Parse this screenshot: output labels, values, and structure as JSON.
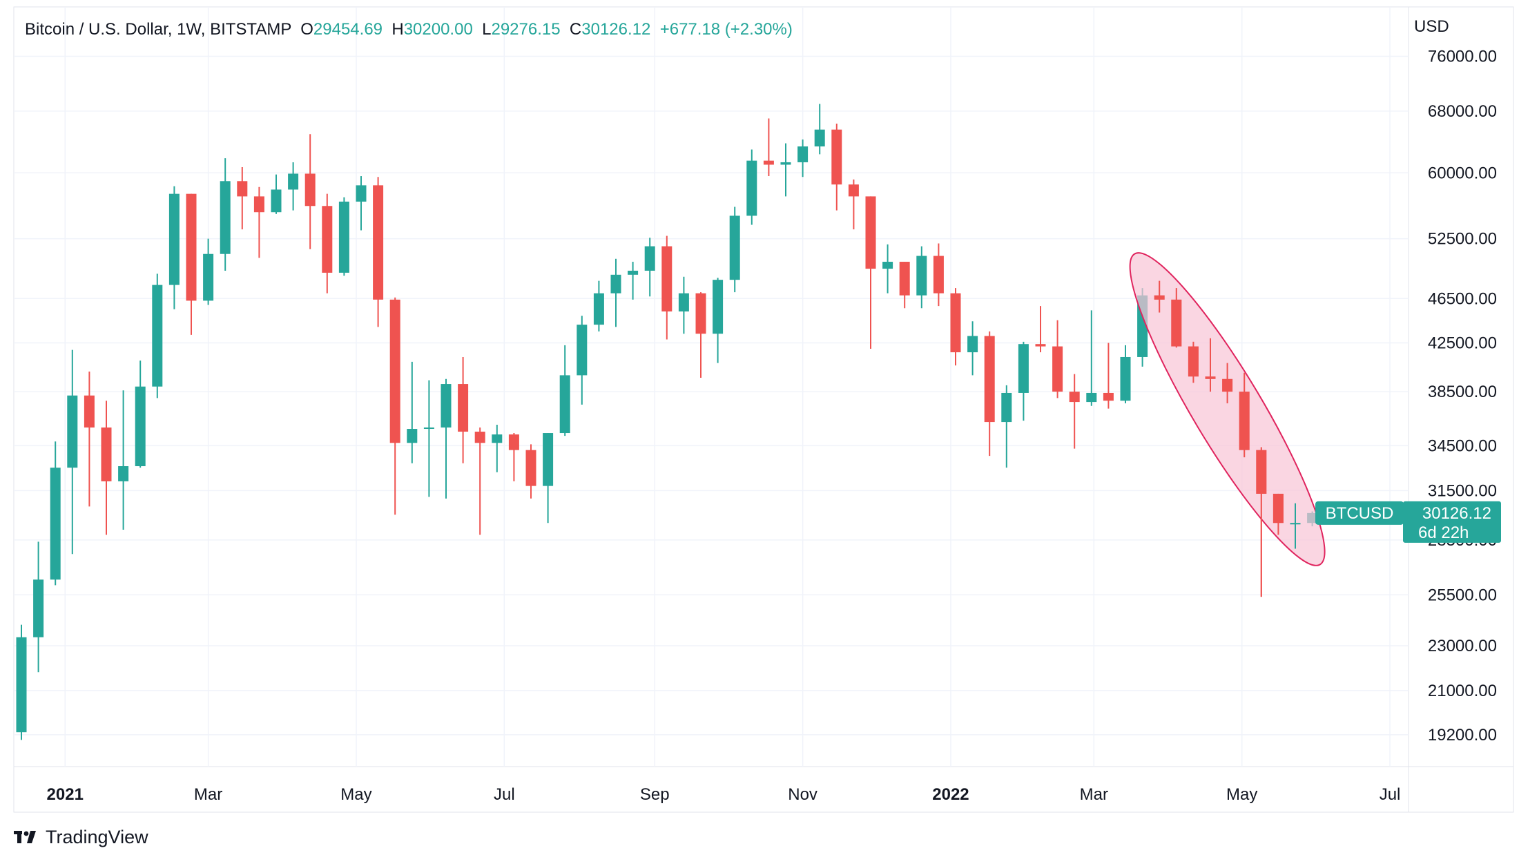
{
  "header": {
    "symbol_title": "Bitcoin / U.S. Dollar, 1W, BITSTAMP",
    "open_label": "O",
    "open_value": "29454.69",
    "high_label": "H",
    "high_value": "30200.00",
    "low_label": "L",
    "low_value": "29276.15",
    "close_label": "C",
    "close_value": "30126.12",
    "change": "+677.18 (+2.30%)"
  },
  "currency_label": "USD",
  "price_badge": {
    "symbol": "BTCUSD",
    "price": "30126.12",
    "countdown": "6d 22h"
  },
  "branding": {
    "name": "TradingView",
    "logo_icon": "tradingview-logo-icon"
  },
  "colors": {
    "up": "#26a69a",
    "down": "#ef5350",
    "highlight_fill": "#f8c5d6",
    "highlight_stroke": "#e0245e",
    "grid": "#f0f3fa",
    "text": "#131722"
  },
  "chart_data": {
    "type": "candlestick",
    "scale": "log",
    "timeframe": "1W",
    "ylim": [
      18000,
      84000
    ],
    "y_ticks": [
      "76000.00",
      "68000.00",
      "60000.00",
      "52500.00",
      "46500.00",
      "42500.00",
      "38500.00",
      "34500.00",
      "31500.00",
      "28500.00",
      "25500.00",
      "23000.00",
      "21000.00",
      "19200.00"
    ],
    "x_ticks": [
      "2021",
      "Mar",
      "May",
      "Jul",
      "Sep",
      "Nov",
      "2022",
      "Mar",
      "May",
      "Jul"
    ],
    "bold_x_ticks": [
      "2021",
      "2022"
    ],
    "candles": [
      [
        "2020-12-14",
        19300,
        24000,
        19000,
        23400
      ],
      [
        "2020-12-21",
        23400,
        28400,
        21800,
        26300
      ],
      [
        "2020-12-28",
        26300,
        34800,
        26000,
        33000
      ],
      [
        "2021-01-04",
        33000,
        41900,
        27700,
        38200
      ],
      [
        "2021-01-11",
        38200,
        40100,
        30500,
        35800
      ],
      [
        "2021-01-18",
        35800,
        37800,
        28800,
        32100
      ],
      [
        "2021-01-25",
        32100,
        38600,
        29100,
        33100
      ],
      [
        "2021-02-01",
        33100,
        41000,
        33000,
        38900
      ],
      [
        "2021-02-08",
        38900,
        48900,
        38000,
        47800
      ],
      [
        "2021-02-15",
        47800,
        58400,
        45500,
        57500
      ],
      [
        "2021-02-22",
        57500,
        57500,
        43200,
        46300
      ],
      [
        "2021-03-01",
        46300,
        52500,
        45900,
        50900
      ],
      [
        "2021-03-08",
        50900,
        61800,
        49200,
        59000
      ],
      [
        "2021-03-15",
        59000,
        60700,
        53500,
        57200
      ],
      [
        "2021-03-22",
        57200,
        58300,
        50500,
        55400
      ],
      [
        "2021-03-29",
        55400,
        59800,
        55200,
        58000
      ],
      [
        "2021-04-05",
        58000,
        61300,
        55600,
        59900
      ],
      [
        "2021-04-12",
        59900,
        64900,
        51400,
        56100
      ],
      [
        "2021-04-19",
        56100,
        57500,
        47000,
        49000
      ],
      [
        "2021-04-26",
        49000,
        57100,
        48700,
        56600
      ],
      [
        "2021-05-03",
        56600,
        59600,
        53400,
        58500
      ],
      [
        "2021-05-10",
        58500,
        59500,
        43900,
        46400
      ],
      [
        "2021-05-17",
        46400,
        46600,
        30000,
        34700
      ],
      [
        "2021-05-24",
        34700,
        40900,
        33300,
        35700
      ],
      [
        "2021-05-31",
        35700,
        39400,
        31100,
        35800
      ],
      [
        "2021-06-07",
        35800,
        39500,
        31000,
        39100
      ],
      [
        "2021-06-14",
        39100,
        41300,
        33300,
        35500
      ],
      [
        "2021-06-21",
        35500,
        35800,
        28800,
        34700
      ],
      [
        "2021-06-28",
        34700,
        36000,
        32700,
        35300
      ],
      [
        "2021-07-05",
        35300,
        35400,
        32100,
        34200
      ],
      [
        "2021-07-12",
        34200,
        34600,
        31000,
        31800
      ],
      [
        "2021-07-19",
        31800,
        35400,
        29500,
        35400
      ],
      [
        "2021-07-26",
        35400,
        42300,
        35200,
        39800
      ],
      [
        "2021-08-02",
        39800,
        44900,
        37500,
        44100
      ],
      [
        "2021-08-09",
        44100,
        48200,
        43500,
        47000
      ],
      [
        "2021-08-16",
        47000,
        50400,
        43900,
        48800
      ],
      [
        "2021-08-23",
        48800,
        50100,
        46400,
        49200
      ],
      [
        "2021-08-30",
        49200,
        52600,
        46700,
        51700
      ],
      [
        "2021-09-06",
        51700,
        52800,
        42800,
        45300
      ],
      [
        "2021-09-13",
        45300,
        48600,
        43300,
        47000
      ],
      [
        "2021-09-20",
        47000,
        47100,
        39600,
        43300
      ],
      [
        "2021-09-27",
        43300,
        48500,
        40800,
        48300
      ],
      [
        "2021-10-04",
        48300,
        56000,
        47100,
        55000
      ],
      [
        "2021-10-11",
        55000,
        62900,
        54000,
        61500
      ],
      [
        "2021-10-18",
        61500,
        67000,
        59600,
        61000
      ],
      [
        "2021-10-25",
        61000,
        63700,
        57200,
        61300
      ],
      [
        "2021-11-01",
        61300,
        64200,
        59500,
        63300
      ],
      [
        "2021-11-08",
        63300,
        69000,
        62300,
        65500
      ],
      [
        "2021-11-15",
        65500,
        66300,
        55600,
        58600
      ],
      [
        "2021-11-22",
        58600,
        59200,
        53500,
        57200
      ],
      [
        "2021-11-29",
        57200,
        57200,
        42000,
        49400
      ],
      [
        "2021-12-06",
        49400,
        51900,
        47000,
        50100
      ],
      [
        "2021-12-13",
        50100,
        50100,
        45600,
        46800
      ],
      [
        "2021-12-20",
        46800,
        51700,
        45600,
        50700
      ],
      [
        "2021-12-27",
        50700,
        52000,
        45800,
        47000
      ],
      [
        "2022-01-03",
        47000,
        47500,
        40600,
        41700
      ],
      [
        "2022-01-10",
        41700,
        44400,
        39800,
        43100
      ],
      [
        "2022-01-17",
        43100,
        43500,
        33800,
        36200
      ],
      [
        "2022-01-24",
        36200,
        39000,
        33000,
        38400
      ],
      [
        "2022-01-31",
        38400,
        42600,
        36300,
        42400
      ],
      [
        "2022-02-07",
        42400,
        45800,
        41700,
        42200
      ],
      [
        "2022-02-14",
        42200,
        44500,
        38000,
        38500
      ],
      [
        "2022-02-21",
        38500,
        39900,
        34300,
        37700
      ],
      [
        "2022-02-28",
        37700,
        45400,
        37400,
        38400
      ],
      [
        "2022-03-07",
        38400,
        42500,
        37200,
        37800
      ],
      [
        "2022-03-14",
        37800,
        42300,
        37600,
        41300
      ],
      [
        "2022-03-21",
        41300,
        47500,
        40500,
        46800
      ],
      [
        "2022-03-28",
        46800,
        48200,
        45200,
        46400
      ],
      [
        "2022-04-04",
        46400,
        47500,
        42100,
        42200
      ],
      [
        "2022-04-11",
        42200,
        42600,
        39200,
        39700
      ],
      [
        "2022-04-18",
        39700,
        42900,
        38500,
        39500
      ],
      [
        "2022-04-25",
        39500,
        40800,
        37600,
        38500
      ],
      [
        "2022-05-02",
        38500,
        40000,
        33700,
        34200
      ],
      [
        "2022-05-09",
        34200,
        34400,
        25400,
        31300
      ],
      [
        "2022-05-16",
        31300,
        31300,
        28800,
        29500
      ],
      [
        "2022-05-23",
        29500,
        30700,
        28000,
        29500
      ],
      [
        "2022-05-30",
        29500,
        30200,
        29300,
        30100
      ]
    ],
    "annotation": {
      "type": "ellipse",
      "from": "2022-03-28",
      "to": "2022-05-23"
    }
  }
}
